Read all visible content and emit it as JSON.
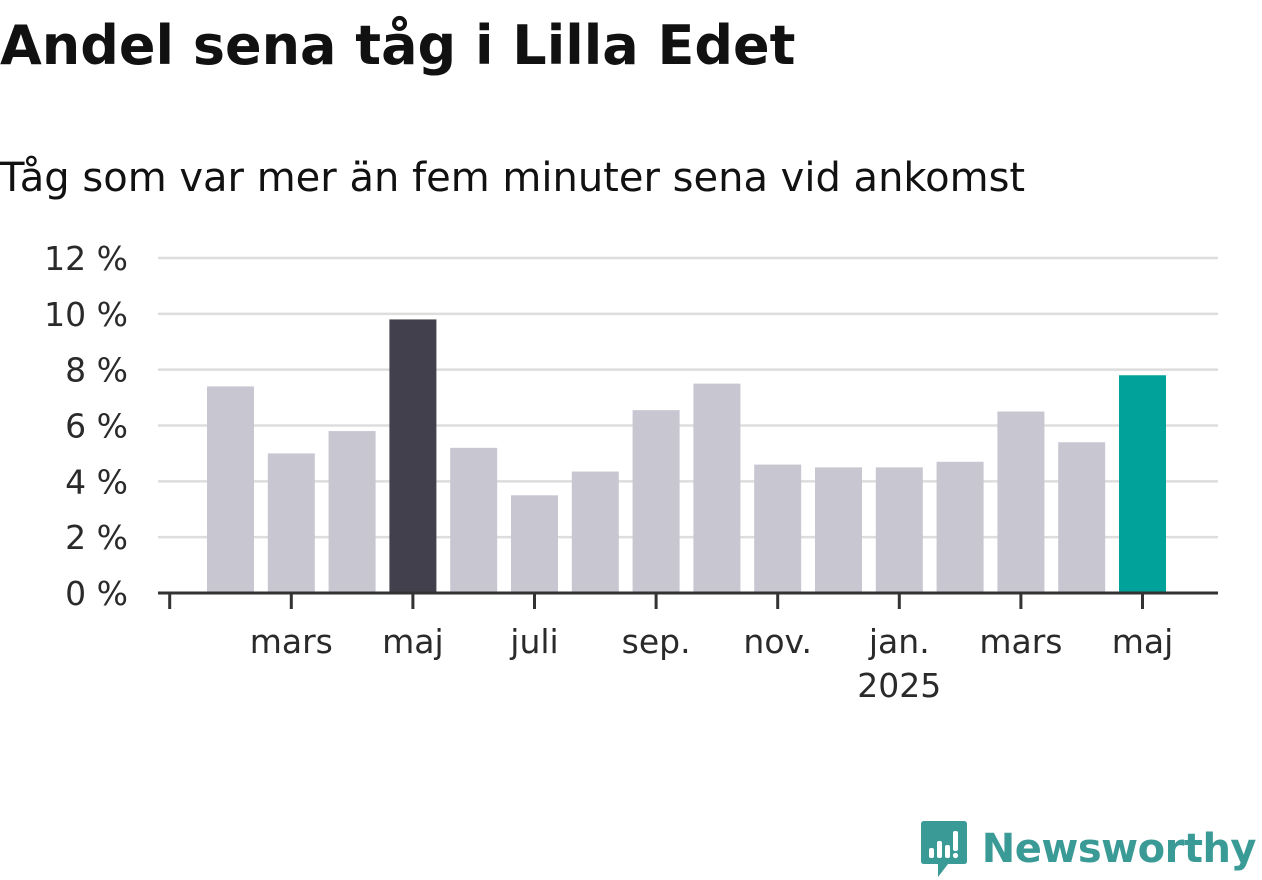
{
  "chart_data": {
    "type": "bar",
    "title": "Andel sena tåg i Lilla Edet",
    "subtitle": "Tåg som var mer än fem minuter sena vid ankomst",
    "xlabel": "",
    "ylabel": "",
    "ylim": [
      0,
      12
    ],
    "yticks": [
      {
        "value": 0,
        "label": "0 %"
      },
      {
        "value": 2,
        "label": "2 %"
      },
      {
        "value": 4,
        "label": "4 %"
      },
      {
        "value": 6,
        "label": "6 %"
      },
      {
        "value": 8,
        "label": "8 %"
      },
      {
        "value": 10,
        "label": "10 %"
      },
      {
        "value": 12,
        "label": "12 %"
      }
    ],
    "grid": true,
    "categories": [
      "2024-02",
      "2024-03",
      "2024-04",
      "2024-05",
      "2024-06",
      "2024-07",
      "2024-08",
      "2024-09",
      "2024-10",
      "2024-11",
      "2024-12",
      "2025-01",
      "2025-02",
      "2025-03",
      "2025-04",
      "2025-05"
    ],
    "values": [
      7.4,
      5.0,
      5.8,
      9.8,
      5.2,
      3.5,
      4.35,
      6.55,
      7.5,
      4.6,
      4.5,
      4.5,
      4.7,
      6.5,
      5.4,
      7.8
    ],
    "highlight": {
      "2024-05": "#42404c",
      "2025-05": "#00a29a"
    },
    "bar_color": "#c8c6d1",
    "xticks": [
      {
        "category": "2024-01",
        "label": "",
        "label2": ""
      },
      {
        "category": "2024-03",
        "label": "mars",
        "label2": ""
      },
      {
        "category": "2024-05",
        "label": "maj",
        "label2": ""
      },
      {
        "category": "2024-07",
        "label": "juli",
        "label2": ""
      },
      {
        "category": "2024-09",
        "label": "sep.",
        "label2": ""
      },
      {
        "category": "2024-11",
        "label": "nov.",
        "label2": ""
      },
      {
        "category": "2025-01",
        "label": "jan.",
        "label2": "2025"
      },
      {
        "category": "2025-03",
        "label": "mars",
        "label2": ""
      },
      {
        "category": "2025-05",
        "label": "maj",
        "label2": ""
      }
    ]
  },
  "logo": {
    "text": "Newsworthy",
    "icon": "newsworthy-logo-icon",
    "color": "#3a9a96"
  }
}
